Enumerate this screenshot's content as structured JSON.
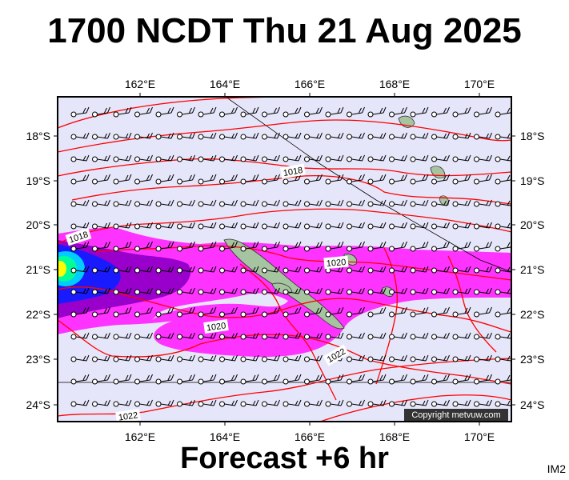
{
  "header": {
    "title": "1700 NCDT Thu 21 Aug 2025"
  },
  "footer": {
    "forecast": "Forecast +6 hr",
    "image_id": "IM2"
  },
  "map": {
    "lon_ticks": [
      "162°E",
      "164°E",
      "166°E",
      "168°E",
      "170°E"
    ],
    "lat_ticks": [
      "18°S",
      "19°S",
      "20°S",
      "21°S",
      "22°S",
      "23°S",
      "24°S"
    ],
    "isobar_labels": [
      "1018",
      "1018",
      "1020",
      "1020",
      "1022",
      "1022"
    ],
    "copyright": "Copyright metvuw.com",
    "colors": {
      "background": "#e6e6fa",
      "isobar": "#ff0000",
      "precip_light": "#ff33ff",
      "precip_medium": "#9900cc",
      "precip_heavy": "#1a1aff",
      "precip_core": "#00ff99",
      "land": "#a7c4a0"
    }
  }
}
